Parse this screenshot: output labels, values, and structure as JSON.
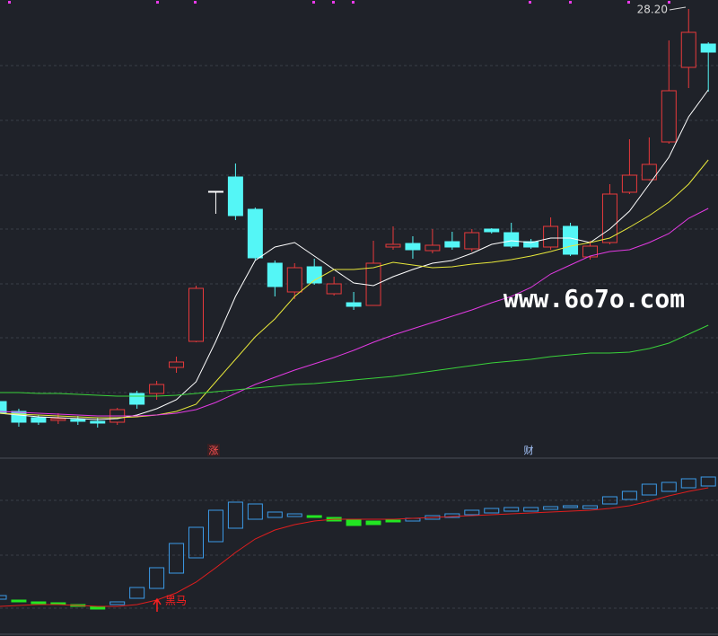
{
  "chart_data": [
    {
      "type": "candlestick",
      "up_color": "#e8393b",
      "down_color": "#54f6f6",
      "doji_color": "#ffffff",
      "ylim": [
        13.8,
        28.5
      ],
      "open": [
        15.09,
        14.76,
        14.55,
        14.46,
        14.49,
        14.43,
        14.4,
        15.36,
        15.36,
        16.23,
        17.1,
        22.11,
        22.59,
        21.51,
        19.71,
        18.75,
        19.59,
        18.69,
        18.39,
        18.3,
        20.25,
        20.37,
        20.13,
        20.43,
        20.19,
        20.85,
        20.73,
        20.43,
        20.25,
        20.94,
        19.92,
        20.4,
        22.08,
        22.5,
        23.76,
        26.25,
        27.03
      ],
      "high": [
        15.15,
        14.85,
        14.64,
        14.7,
        14.61,
        14.55,
        14.88,
        15.45,
        15.78,
        16.59,
        18.96,
        22.11,
        23.04,
        21.57,
        19.8,
        19.71,
        19.86,
        19.26,
        18.75,
        20.46,
        20.94,
        20.61,
        20.85,
        20.76,
        20.85,
        20.88,
        21.06,
        20.52,
        21.24,
        21.06,
        20.46,
        22.35,
        23.85,
        23.91,
        27.15,
        28.2,
        27.09
      ],
      "low": [
        14.64,
        14.25,
        14.31,
        14.34,
        14.31,
        14.22,
        14.31,
        14.85,
        15.15,
        16.05,
        17.07,
        21.36,
        21.15,
        19.8,
        18.6,
        18.51,
        18.99,
        18.63,
        18.15,
        18.3,
        20.16,
        19.86,
        20.04,
        20.16,
        20.1,
        20.7,
        20.22,
        20.19,
        20.16,
        19.95,
        19.83,
        20.34,
        22.02,
        22.47,
        23.7,
        25.56,
        25.44
      ],
      "close": [
        14.7,
        14.4,
        14.4,
        14.52,
        14.43,
        14.37,
        14.82,
        15.0,
        15.66,
        16.41,
        18.87,
        22.11,
        21.3,
        19.89,
        18.93,
        19.56,
        19.05,
        19.02,
        18.27,
        19.71,
        20.34,
        20.16,
        20.31,
        20.25,
        20.73,
        20.76,
        20.28,
        20.25,
        20.94,
        20.01,
        20.28,
        22.02,
        22.65,
        23.01,
        25.47,
        27.42,
        26.76
      ],
      "series": [
        {
          "color": "#ffffff",
          "values": [
            14.7,
            14.64,
            14.58,
            14.55,
            14.52,
            14.49,
            14.52,
            14.64,
            14.85,
            15.15,
            15.75,
            17.1,
            18.6,
            19.8,
            20.25,
            20.4,
            19.95,
            19.5,
            19.05,
            18.96,
            19.26,
            19.5,
            19.71,
            19.8,
            20.04,
            20.34,
            20.46,
            20.4,
            20.55,
            20.55,
            20.4,
            20.85,
            21.45,
            22.35,
            23.25,
            24.6,
            25.5
          ]
        },
        {
          "color": "#e8e83a",
          "values": [
            14.7,
            14.67,
            14.64,
            14.61,
            14.58,
            14.55,
            14.55,
            14.58,
            14.64,
            14.76,
            15.0,
            15.75,
            16.5,
            17.25,
            17.85,
            18.6,
            19.14,
            19.5,
            19.5,
            19.56,
            19.74,
            19.65,
            19.56,
            19.59,
            19.68,
            19.74,
            19.83,
            19.95,
            20.1,
            20.28,
            20.4,
            20.55,
            20.91,
            21.3,
            21.75,
            22.35,
            23.16
          ]
        },
        {
          "color": "#e23ae2",
          "values": [
            14.76,
            14.73,
            14.7,
            14.67,
            14.64,
            14.61,
            14.61,
            14.61,
            14.64,
            14.7,
            14.82,
            15.06,
            15.36,
            15.66,
            15.9,
            16.14,
            16.35,
            16.56,
            16.8,
            17.07,
            17.31,
            17.52,
            17.73,
            17.94,
            18.15,
            18.39,
            18.6,
            18.9,
            19.35,
            19.65,
            19.95,
            20.1,
            20.16,
            20.4,
            20.7,
            21.21,
            21.54
          ]
        },
        {
          "color": "#3ad23a",
          "values": [
            15.39,
            15.39,
            15.36,
            15.36,
            15.33,
            15.3,
            15.27,
            15.27,
            15.27,
            15.3,
            15.36,
            15.42,
            15.48,
            15.54,
            15.6,
            15.66,
            15.69,
            15.75,
            15.81,
            15.87,
            15.93,
            16.02,
            16.11,
            16.2,
            16.29,
            16.38,
            16.44,
            16.5,
            16.59,
            16.65,
            16.71,
            16.71,
            16.74,
            16.86,
            17.04,
            17.34,
            17.64
          ]
        }
      ],
      "annotations": [
        "28.20",
        "涨",
        "财"
      ],
      "watermark": "www.6o7o.com"
    },
    {
      "type": "box-indicator",
      "up_color": "#3b9ae8",
      "down_color": "#22e622",
      "ylim": [
        0,
        19.8
      ],
      "open": [
        4.1,
        4.0,
        3.8,
        3.7,
        3.5,
        3.3,
        3.5,
        4.2,
        5.3,
        7.0,
        8.7,
        10.5,
        12.0,
        13.0,
        13.2,
        13.3,
        13.4,
        13.2,
        12.9,
        12.8,
        12.9,
        12.8,
        13.0,
        13.2,
        13.5,
        13.7,
        13.9,
        13.9,
        14.1,
        14.3,
        14.2,
        14.7,
        15.2,
        15.7,
        16.1,
        16.5,
        16.7
      ],
      "close": [
        4.5,
        3.8,
        3.6,
        3.5,
        3.3,
        3.0,
        3.8,
        5.4,
        7.6,
        10.3,
        12.1,
        14.0,
        14.9,
        14.7,
        13.8,
        13.6,
        13.2,
        12.8,
        12.3,
        12.4,
        12.7,
        13.1,
        13.4,
        13.6,
        14.0,
        14.2,
        14.3,
        14.3,
        14.4,
        14.5,
        14.5,
        15.5,
        16.1,
        16.9,
        17.1,
        17.5,
        17.7
      ],
      "series": [
        {
          "color": "#e01e1e",
          "values": [
            3.3,
            3.4,
            3.5,
            3.5,
            3.4,
            3.3,
            3.3,
            3.5,
            4.0,
            4.8,
            6.0,
            7.6,
            9.3,
            10.8,
            11.8,
            12.4,
            12.8,
            13.0,
            13.0,
            13.0,
            13.0,
            13.1,
            13.2,
            13.3,
            13.4,
            13.5,
            13.6,
            13.7,
            13.8,
            13.9,
            14.0,
            14.2,
            14.5,
            15.0,
            15.6,
            16.1,
            16.5
          ]
        }
      ],
      "annotations": [
        "黑马"
      ]
    }
  ]
}
